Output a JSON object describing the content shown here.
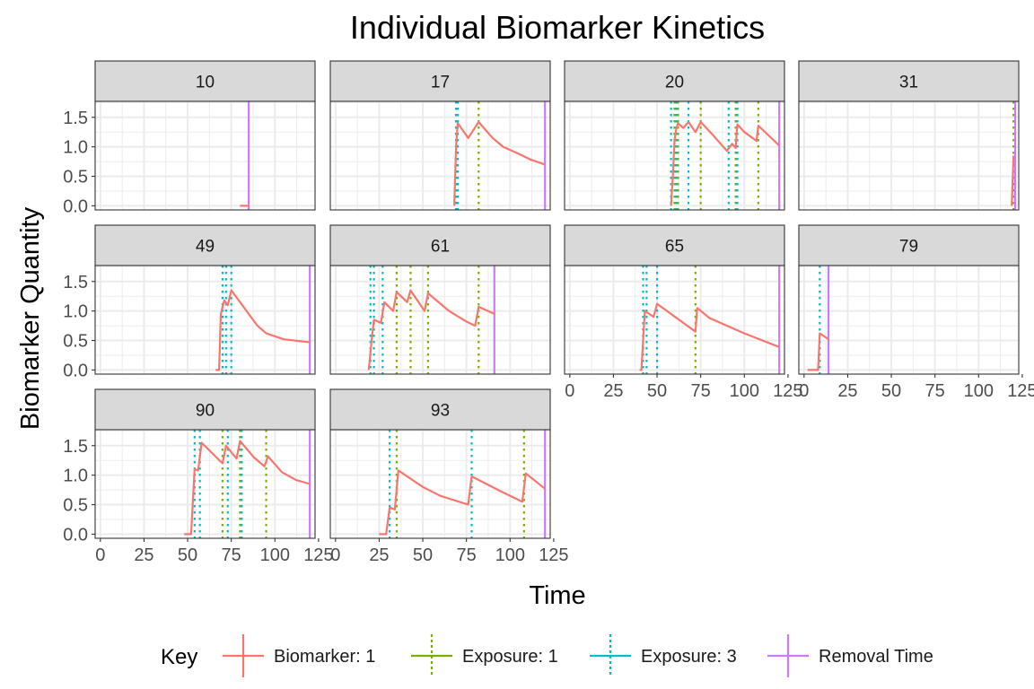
{
  "chart_data": {
    "type": "line",
    "title": "Individual Biomarker Kinetics",
    "xlabel": "Time",
    "ylabel": "Biomarker Quantity",
    "xlim": [
      -3,
      123
    ],
    "ylim": [
      -0.07,
      1.77
    ],
    "x_ticks": [
      0,
      25,
      50,
      75,
      100,
      125
    ],
    "y_ticks": [
      0.0,
      0.5,
      1.0,
      1.5
    ],
    "x_tick_labels": [
      "0",
      "25",
      "50",
      "75",
      "100",
      "125"
    ],
    "y_tick_labels": [
      "0.0",
      "0.5",
      "1.0",
      "1.5"
    ],
    "grid": true,
    "facet_layout": {
      "columns": 4,
      "rows": 3
    },
    "legend": {
      "title": "Key",
      "position": "bottom",
      "entries": [
        {
          "label": "Biomarker: 1",
          "color": "#F8766D"
        },
        {
          "label": "Exposure: 1",
          "color": "#7CAE00"
        },
        {
          "label": "Exposure: 3",
          "color": "#00BFC4"
        },
        {
          "label": "Removal Time",
          "color": "#C77CFF"
        }
      ]
    },
    "colors": {
      "biomarker": "#F8766D",
      "exposure_1": "#7CAE00",
      "exposure_3": "#00BFC4",
      "removal": "#C77CFF",
      "strip_fill": "#D9D9D9",
      "grid": "#EBEBEB",
      "border": "#333333"
    },
    "panels": [
      {
        "id": "10",
        "removal": 85,
        "exposure_1": [],
        "exposure_3": [],
        "biomarker": [
          [
            80,
            0
          ],
          [
            85,
            0
          ]
        ]
      },
      {
        "id": "17",
        "removal": 120,
        "exposure_1": [
          82
        ],
        "exposure_3": [
          69,
          70
        ],
        "biomarker": [
          [
            68,
            0
          ],
          [
            69,
            0.95
          ],
          [
            70,
            1.4
          ],
          [
            76,
            1.15
          ],
          [
            82,
            1.42
          ],
          [
            90,
            1.15
          ],
          [
            96,
            1.0
          ],
          [
            105,
            0.88
          ],
          [
            112,
            0.78
          ],
          [
            120,
            0.7
          ]
        ]
      },
      {
        "id": "20",
        "removal": 120,
        "exposure_1": [
          60,
          62,
          75,
          95,
          108
        ],
        "exposure_3": [
          58,
          61,
          68,
          91,
          96
        ],
        "biomarker": [
          [
            58,
            0
          ],
          [
            59,
            0.5
          ],
          [
            60,
            1.1
          ],
          [
            61,
            1.3
          ],
          [
            62,
            1.4
          ],
          [
            65,
            1.32
          ],
          [
            68,
            1.42
          ],
          [
            72,
            1.25
          ],
          [
            75,
            1.42
          ],
          [
            82,
            1.2
          ],
          [
            90,
            0.93
          ],
          [
            93,
            1.05
          ],
          [
            95,
            0.98
          ],
          [
            96,
            1.38
          ],
          [
            100,
            1.25
          ],
          [
            107,
            1.1
          ],
          [
            108,
            1.36
          ],
          [
            120,
            1.02
          ]
        ]
      },
      {
        "id": "31",
        "removal": 121,
        "exposure_1": [
          120
        ],
        "exposure_3": [],
        "biomarker": [
          [
            119,
            0
          ],
          [
            120,
            0.85
          ]
        ]
      },
      {
        "id": "49",
        "removal": 120,
        "exposure_1": [],
        "exposure_3": [
          70,
          72,
          75
        ],
        "biomarker": [
          [
            66,
            0
          ],
          [
            68,
            0
          ],
          [
            69,
            0.95
          ],
          [
            71,
            1.18
          ],
          [
            73,
            1.1
          ],
          [
            75,
            1.35
          ],
          [
            90,
            0.75
          ],
          [
            95,
            0.62
          ],
          [
            105,
            0.52
          ],
          [
            120,
            0.47
          ]
        ]
      },
      {
        "id": "61",
        "removal": 91,
        "exposure_1": [
          35,
          43,
          53,
          82
        ],
        "exposure_3": [
          20,
          22,
          27
        ],
        "biomarker": [
          [
            19,
            0
          ],
          [
            21,
            0.6
          ],
          [
            22,
            0.85
          ],
          [
            26,
            0.8
          ],
          [
            28,
            1.15
          ],
          [
            33,
            1.0
          ],
          [
            35,
            1.32
          ],
          [
            41,
            1.15
          ],
          [
            43,
            1.35
          ],
          [
            51,
            1.0
          ],
          [
            53,
            1.3
          ],
          [
            65,
            1.0
          ],
          [
            75,
            0.82
          ],
          [
            80,
            0.75
          ],
          [
            82,
            1.07
          ],
          [
            91,
            0.95
          ]
        ]
      },
      {
        "id": "65",
        "removal": 120,
        "exposure_1": [
          72
        ],
        "exposure_3": [
          42,
          44,
          50
        ],
        "biomarker": [
          [
            40,
            0
          ],
          [
            41,
            0
          ],
          [
            43,
            1.0
          ],
          [
            48,
            0.9
          ],
          [
            50,
            1.12
          ],
          [
            72,
            0.65
          ],
          [
            73,
            1.05
          ],
          [
            80,
            0.88
          ],
          [
            100,
            0.62
          ],
          [
            120,
            0.39
          ]
        ]
      },
      {
        "id": "79",
        "removal": 14,
        "exposure_1": [],
        "exposure_3": [
          9
        ],
        "biomarker": [
          [
            2,
            0
          ],
          [
            8,
            0
          ],
          [
            9,
            0.62
          ],
          [
            14,
            0.52
          ]
        ]
      },
      {
        "id": "90",
        "removal": 120,
        "exposure_1": [
          70,
          80,
          95
        ],
        "exposure_3": [
          54,
          57,
          73,
          81
        ],
        "biomarker": [
          [
            48,
            0
          ],
          [
            52,
            0
          ],
          [
            54,
            1.1
          ],
          [
            56,
            1.08
          ],
          [
            58,
            1.55
          ],
          [
            70,
            1.2
          ],
          [
            72,
            1.5
          ],
          [
            78,
            1.28
          ],
          [
            80,
            1.58
          ],
          [
            88,
            1.3
          ],
          [
            94,
            1.15
          ],
          [
            96,
            1.32
          ],
          [
            104,
            1.05
          ],
          [
            112,
            0.92
          ],
          [
            120,
            0.85
          ]
        ]
      },
      {
        "id": "93",
        "removal": 120,
        "exposure_1": [
          35,
          108
        ],
        "exposure_3": [
          31,
          78
        ],
        "biomarker": [
          [
            25,
            0
          ],
          [
            29,
            0
          ],
          [
            31,
            0.45
          ],
          [
            34,
            0.42
          ],
          [
            36,
            1.08
          ],
          [
            50,
            0.8
          ],
          [
            60,
            0.65
          ],
          [
            76,
            0.5
          ],
          [
            78,
            0.98
          ],
          [
            95,
            0.72
          ],
          [
            107,
            0.55
          ],
          [
            109,
            1.03
          ],
          [
            120,
            0.77
          ]
        ]
      }
    ]
  }
}
